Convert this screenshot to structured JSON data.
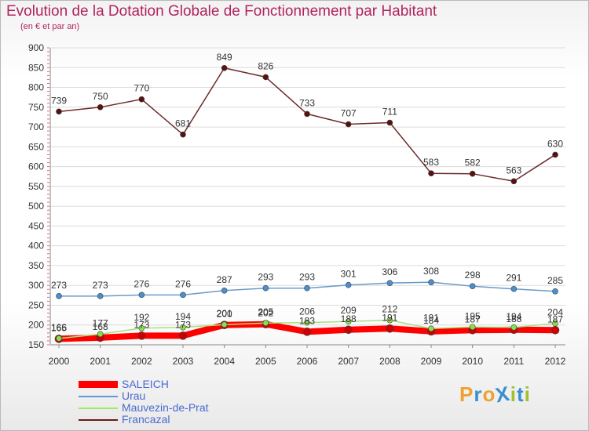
{
  "title": "Evolution de la Dotation Globale de Fonctionnement par Habitant",
  "subtitle": "(en € et par an)",
  "logo": {
    "text": "ProXiti",
    "letter_colors": [
      "#f0a030",
      "#3a8fd0",
      "#f0a030",
      "#3a8fd0",
      "#a0c030",
      "#3a8fd0",
      "#a0c030"
    ]
  },
  "chart_data": {
    "type": "line",
    "title": "Evolution de la Dotation Globale de Fonctionnement par Habitant",
    "subtitle": "(en € et par an)",
    "xlabel": "",
    "ylabel": "",
    "x": [
      "2000",
      "2001",
      "2002",
      "2003",
      "2004",
      "2005",
      "2006",
      "2007",
      "2008",
      "2009",
      "2010",
      "2011",
      "2012"
    ],
    "ylim": [
      150,
      900
    ],
    "yticks": [
      150,
      200,
      250,
      300,
      350,
      400,
      450,
      500,
      550,
      600,
      650,
      700,
      750,
      800,
      850,
      900
    ],
    "grid": "horizontal",
    "legend_position": "bottom-left",
    "series": [
      {
        "name": "SALEICH",
        "color": "#ff0000",
        "values": [
          165,
          168,
          173,
          173,
          200,
          202,
          183,
          188,
          191,
          184,
          187,
          188,
          187
        ]
      },
      {
        "name": "Urau",
        "color": "#5b9bd5",
        "values": [
          273,
          273,
          276,
          276,
          287,
          293,
          293,
          301,
          306,
          308,
          298,
          291,
          285
        ]
      },
      {
        "name": "Mauvezin-de-Prat",
        "color": "#99ee66",
        "values": [
          166,
          177,
          192,
          194,
          201,
          205,
          206,
          209,
          212,
          191,
          195,
          194,
          204
        ]
      },
      {
        "name": "Francazal",
        "color": "#6b1a1a",
        "values": [
          739,
          750,
          770,
          681,
          849,
          826,
          733,
          707,
          711,
          583,
          582,
          563,
          630
        ]
      }
    ]
  }
}
